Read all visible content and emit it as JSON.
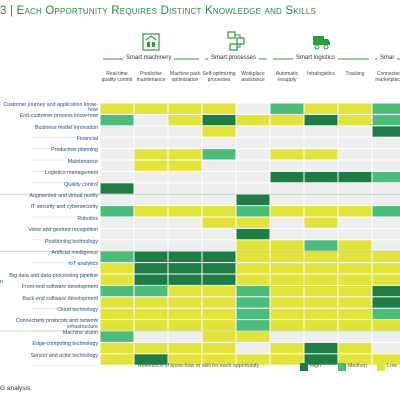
{
  "title": "3 | Each Opportunity Requires Distinct Knowledge and Skills",
  "groups": [
    {
      "label": "Smart machinery",
      "icon": "factory-icon"
    },
    {
      "label": "Smart processes",
      "icon": "process-flow-icon"
    },
    {
      "label": "Smart logistics",
      "icon": "truck-icon"
    },
    {
      "label": "Smar",
      "icon": ""
    }
  ],
  "side_label": "n",
  "source_text": "G analysis.",
  "legend": {
    "title": "Relevance of know-how or skill for each opportunity",
    "items": [
      {
        "label": "High",
        "color": "#1e7d45"
      },
      {
        "label": "Medium",
        "color": "#4cbc7a"
      },
      {
        "label": "Low",
        "color": "#e2e33a"
      }
    ]
  },
  "colors": {
    "high": "#1e7d45",
    "medium": "#4cbc7a",
    "low": "#e2e33a",
    "none": "#eeeeee",
    "accent": "#2a9d3e"
  },
  "chart_data": {
    "type": "heatmap",
    "title": "3 | Each Opportunity Requires Distinct Knowledge and Skills",
    "legend_title": "Relevance of know-how or skill for each opportunity",
    "levels": [
      "none",
      "low",
      "medium",
      "high"
    ],
    "columns": [
      "Real-time quality control",
      "Predictive maintenance",
      "Machine park optimization",
      "Self-optimizing processes",
      "Workplace assistance",
      "Automatic resupply",
      "Intralogistics",
      "Tracking",
      "Connected marketplace"
    ],
    "rows": [
      {
        "label": "Customer journey and application know-how",
        "values": [
          "low",
          "low",
          "low",
          "low",
          "none",
          "medium",
          "low",
          "low",
          "medium"
        ]
      },
      {
        "label": "End-customer process know-how",
        "values": [
          "medium",
          "none",
          "low",
          "high",
          "low",
          "low",
          "high",
          "low",
          "medium"
        ]
      },
      {
        "label": "Business model innovation",
        "values": [
          "none",
          "none",
          "none",
          "low",
          "none",
          "none",
          "none",
          "none",
          "high"
        ]
      },
      {
        "label": "Financial",
        "values": [
          "none",
          "none",
          "none",
          "none",
          "none",
          "none",
          "none",
          "none",
          "none"
        ]
      },
      {
        "label": "Production planning",
        "values": [
          "none",
          "low",
          "low",
          "medium",
          "none",
          "low",
          "low",
          "none",
          "none"
        ]
      },
      {
        "label": "Maintenance",
        "values": [
          "none",
          "low",
          "low",
          "none",
          "none",
          "none",
          "none",
          "none",
          "none"
        ]
      },
      {
        "label": "Logistics management",
        "values": [
          "none",
          "none",
          "none",
          "none",
          "none",
          "high",
          "high",
          "high",
          "medium"
        ]
      },
      {
        "label": "Quality control",
        "values": [
          "high",
          "none",
          "none",
          "none",
          "none",
          "none",
          "none",
          "none",
          "none"
        ]
      },
      {
        "label": "Augmented and virtual reality",
        "values": [
          "none",
          "none",
          "none",
          "none",
          "high",
          "none",
          "none",
          "none",
          "none"
        ]
      },
      {
        "label": "IT security and cybersecurity",
        "values": [
          "medium",
          "low",
          "low",
          "low",
          "medium",
          "low",
          "low",
          "low",
          "medium"
        ]
      },
      {
        "label": "Robotics",
        "values": [
          "none",
          "none",
          "none",
          "low",
          "low",
          "none",
          "low",
          "none",
          "none"
        ]
      },
      {
        "label": "Voice and gesture recognition",
        "values": [
          "none",
          "none",
          "none",
          "none",
          "high",
          "none",
          "none",
          "none",
          "none"
        ]
      },
      {
        "label": "Positioning technology",
        "values": [
          "none",
          "none",
          "none",
          "none",
          "low",
          "low",
          "medium",
          "low",
          "none"
        ]
      },
      {
        "label": "Artificial intelligence",
        "values": [
          "medium",
          "high",
          "high",
          "high",
          "low",
          "low",
          "low",
          "low",
          "low"
        ]
      },
      {
        "label": "IoT analytics",
        "values": [
          "low",
          "high",
          "high",
          "high",
          "low",
          "low",
          "low",
          "low",
          "low"
        ]
      },
      {
        "label": "Big data and data-processing pipeline",
        "values": [
          "low",
          "high",
          "high",
          "high",
          "low",
          "low",
          "low",
          "low",
          "low"
        ]
      },
      {
        "label": "Front-end software development",
        "values": [
          "medium",
          "medium",
          "low",
          "low",
          "medium",
          "low",
          "low",
          "low",
          "high"
        ]
      },
      {
        "label": "Back-end software development",
        "values": [
          "low",
          "low",
          "low",
          "low",
          "medium",
          "low",
          "low",
          "low",
          "high"
        ]
      },
      {
        "label": "Cloud technology",
        "values": [
          "low",
          "low",
          "low",
          "low",
          "medium",
          "low",
          "low",
          "low",
          "medium"
        ]
      },
      {
        "label": "Connectivity protocols and network infrastructure",
        "values": [
          "low",
          "low",
          "low",
          "low",
          "medium",
          "low",
          "low",
          "low",
          "low"
        ]
      },
      {
        "label": "Machine vision",
        "values": [
          "medium",
          "none",
          "none",
          "low",
          "low",
          "none",
          "none",
          "none",
          "none"
        ]
      },
      {
        "label": "Edge-computing technology",
        "values": [
          "low",
          "low",
          "low",
          "low",
          "none",
          "low",
          "high",
          "low",
          "none"
        ]
      },
      {
        "label": "Sensor and actor technology",
        "values": [
          "low",
          "high",
          "low",
          "low",
          "low",
          "low",
          "high",
          "low",
          "low"
        ]
      }
    ]
  }
}
